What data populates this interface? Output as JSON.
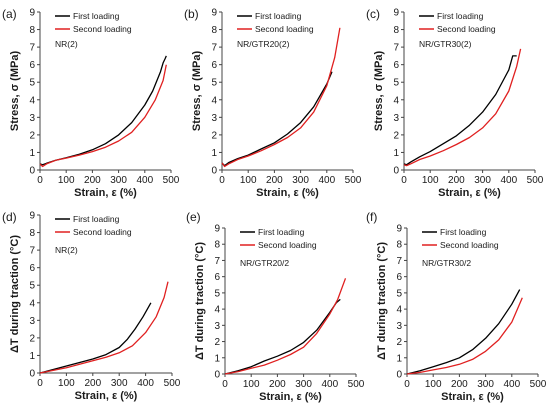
{
  "chart_data": [
    {
      "panel": "(a)",
      "sample": "NR(2)",
      "type": "line",
      "ylabel": "Stress,  σ (MPa)",
      "xlabel": "Strain, ε (%)",
      "xlim": [
        0,
        500
      ],
      "ylim": [
        0,
        9
      ],
      "xticks": [
        0,
        100,
        200,
        300,
        400,
        500
      ],
      "yticks": [
        0,
        1,
        2,
        3,
        4,
        5,
        6,
        7,
        8,
        9
      ],
      "series": [
        {
          "name": "First loading",
          "color": "#000000",
          "x": [
            0,
            10,
            25,
            60,
            100,
            150,
            200,
            250,
            300,
            350,
            400,
            430,
            460,
            470,
            478,
            482
          ],
          "y": [
            0.35,
            0.3,
            0.38,
            0.55,
            0.7,
            0.9,
            1.15,
            1.5,
            2.0,
            2.7,
            3.7,
            4.5,
            5.6,
            6.1,
            6.35,
            6.5
          ]
        },
        {
          "name": "Second loading",
          "color": "#e02020",
          "x": [
            0,
            10,
            25,
            60,
            100,
            150,
            200,
            250,
            300,
            350,
            400,
            440,
            470,
            482
          ],
          "y": [
            0.35,
            0.2,
            0.35,
            0.55,
            0.68,
            0.85,
            1.05,
            1.3,
            1.65,
            2.15,
            3.0,
            4.0,
            5.1,
            6.0
          ]
        }
      ]
    },
    {
      "panel": "(b)",
      "sample": "NR/GTR20(2)",
      "type": "line",
      "ylabel": "Stress,  σ (MPa)",
      "xlabel": "Strain, ε (%)",
      "xlim": [
        0,
        500
      ],
      "ylim": [
        0,
        9
      ],
      "xticks": [
        0,
        100,
        200,
        300,
        400,
        500
      ],
      "yticks": [
        0,
        1,
        2,
        3,
        4,
        5,
        6,
        7,
        8,
        9
      ],
      "series": [
        {
          "name": "First loading",
          "color": "#000000",
          "x": [
            0,
            10,
            25,
            60,
            100,
            150,
            200,
            250,
            300,
            350,
            400,
            420
          ],
          "y": [
            0.4,
            0.25,
            0.42,
            0.65,
            0.85,
            1.2,
            1.55,
            2.05,
            2.7,
            3.6,
            4.9,
            5.6
          ]
        },
        {
          "name": "Second loading",
          "color": "#e02020",
          "x": [
            0,
            10,
            25,
            60,
            100,
            150,
            200,
            250,
            300,
            350,
            400,
            430,
            450
          ],
          "y": [
            0.4,
            0.2,
            0.35,
            0.6,
            0.8,
            1.1,
            1.45,
            1.85,
            2.4,
            3.3,
            4.8,
            6.4,
            8.1
          ]
        }
      ]
    },
    {
      "panel": "(c)",
      "sample": "NR/GTR30(2)",
      "type": "line",
      "ylabel": "Stress,  σ (MPa)",
      "xlabel": "Strain, ε (%)",
      "xlim": [
        0,
        500
      ],
      "ylim": [
        0,
        9
      ],
      "xticks": [
        0,
        100,
        200,
        300,
        400,
        500
      ],
      "yticks": [
        0,
        1,
        2,
        3,
        4,
        5,
        6,
        7,
        8,
        9
      ],
      "series": [
        {
          "name": "First loading",
          "color": "#000000",
          "x": [
            0,
            10,
            25,
            60,
            100,
            150,
            200,
            250,
            300,
            350,
            400,
            415,
            430
          ],
          "y": [
            0.35,
            0.3,
            0.45,
            0.75,
            1.05,
            1.5,
            1.95,
            2.55,
            3.3,
            4.3,
            5.7,
            6.5,
            6.5
          ]
        },
        {
          "name": "Second loading",
          "color": "#e02020",
          "x": [
            0,
            10,
            25,
            60,
            100,
            150,
            200,
            250,
            300,
            350,
            400,
            430,
            445
          ],
          "y": [
            0.3,
            0.25,
            0.35,
            0.6,
            0.8,
            1.1,
            1.45,
            1.85,
            2.4,
            3.2,
            4.5,
            5.9,
            6.9
          ]
        }
      ]
    },
    {
      "panel": "(d)",
      "sample": "NR(2)",
      "type": "line",
      "ylabel": "ΔT during traction (°C)",
      "xlabel": "Strain, ε (%)",
      "xlim": [
        0,
        500
      ],
      "ylim": [
        0,
        9
      ],
      "xticks": [
        0,
        100,
        200,
        300,
        400,
        500
      ],
      "yticks": [
        0,
        1,
        2,
        3,
        4,
        5,
        6,
        7,
        8,
        9
      ],
      "series": [
        {
          "name": "First loading",
          "color": "#000000",
          "x": [
            0,
            50,
            100,
            150,
            200,
            250,
            300,
            330,
            360,
            390,
            420
          ],
          "y": [
            0,
            0.2,
            0.4,
            0.6,
            0.8,
            1.05,
            1.45,
            1.9,
            2.5,
            3.2,
            4.0
          ]
        },
        {
          "name": "Second loading",
          "color": "#e02020",
          "x": [
            0,
            50,
            100,
            150,
            200,
            250,
            300,
            350,
            400,
            440,
            470,
            485
          ],
          "y": [
            0,
            0.15,
            0.3,
            0.5,
            0.7,
            0.9,
            1.15,
            1.55,
            2.3,
            3.2,
            4.3,
            5.2
          ]
        }
      ]
    },
    {
      "panel": "(e)",
      "sample": "NR/GTR20/2",
      "type": "line",
      "ylabel": "ΔT during traction (°C)",
      "xlabel": "Strain, ε (%)",
      "xlim": [
        0,
        500
      ],
      "ylim": [
        0,
        9
      ],
      "xticks": [
        0,
        100,
        200,
        300,
        400,
        500
      ],
      "yticks": [
        0,
        1,
        2,
        3,
        4,
        5,
        6,
        7,
        8,
        9
      ],
      "series": [
        {
          "name": "First loading",
          "color": "#000000",
          "x": [
            0,
            50,
            100,
            150,
            200,
            250,
            300,
            350,
            400,
            425,
            440
          ],
          "y": [
            0,
            0.2,
            0.45,
            0.8,
            1.1,
            1.45,
            1.95,
            2.7,
            3.8,
            4.4,
            4.6
          ]
        },
        {
          "name": "Second loading",
          "color": "#e02020",
          "x": [
            0,
            50,
            100,
            150,
            200,
            250,
            300,
            350,
            400,
            430,
            460
          ],
          "y": [
            0,
            0.15,
            0.35,
            0.55,
            0.85,
            1.2,
            1.65,
            2.5,
            3.7,
            4.6,
            5.9
          ]
        }
      ]
    },
    {
      "panel": "(f)",
      "sample": "NR/GTR30/2",
      "type": "line",
      "ylabel": "ΔT during traction (°C)",
      "xlabel": "Strain, ε (%)",
      "xlim": [
        0,
        500
      ],
      "ylim": [
        0,
        9
      ],
      "xticks": [
        0,
        100,
        200,
        300,
        400,
        500
      ],
      "yticks": [
        0,
        1,
        2,
        3,
        4,
        5,
        6,
        7,
        8,
        9
      ],
      "series": [
        {
          "name": "First loading",
          "color": "#000000",
          "x": [
            0,
            50,
            100,
            150,
            200,
            250,
            300,
            350,
            400,
            430
          ],
          "y": [
            0,
            0.2,
            0.45,
            0.7,
            1.0,
            1.5,
            2.2,
            3.1,
            4.3,
            5.2
          ]
        },
        {
          "name": "Second loading",
          "color": "#e02020",
          "x": [
            0,
            50,
            100,
            150,
            200,
            250,
            300,
            350,
            400,
            440
          ],
          "y": [
            0,
            0.1,
            0.25,
            0.4,
            0.6,
            0.9,
            1.4,
            2.1,
            3.2,
            4.7
          ]
        }
      ]
    }
  ]
}
